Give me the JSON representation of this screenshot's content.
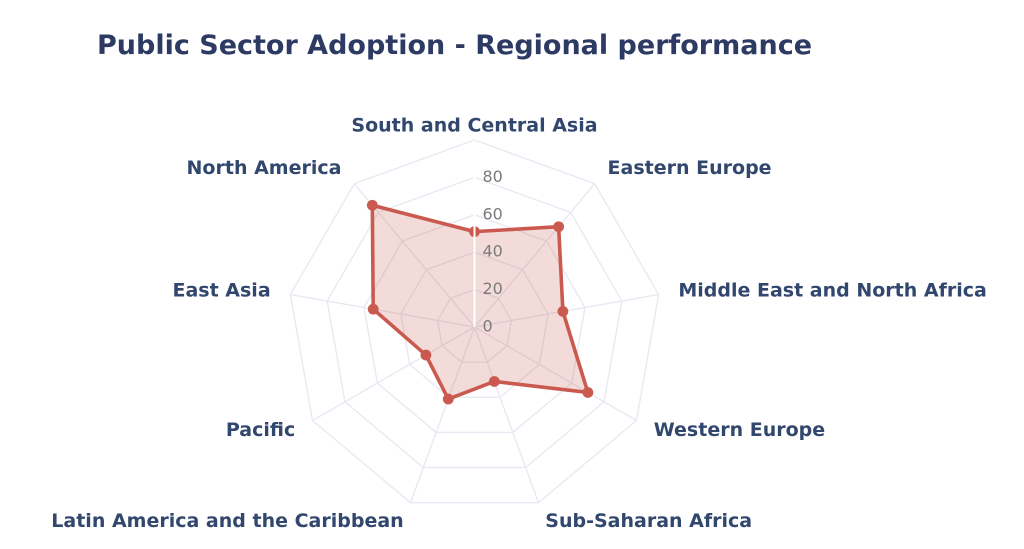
{
  "chart_data": {
    "type": "radar",
    "title": "Public Sector Adoption - Regional performance",
    "categories": [
      "South and Central Asia",
      "Eastern Europe",
      "Middle East and North Africa",
      "Western Europe",
      "Sub-Saharan Africa",
      "Latin America and the Caribbean",
      "Pacific",
      "East Asia",
      "North America"
    ],
    "values": [
      51,
      70,
      48,
      70,
      31,
      41,
      30,
      55,
      85
    ],
    "r_axis": {
      "min": 0,
      "max": 100,
      "tick_values": [
        0,
        20,
        40,
        60,
        80
      ],
      "tick_labels": [
        "0",
        "20",
        "40",
        "60",
        "80"
      ]
    },
    "grid": true,
    "legend": "none",
    "colors": {
      "series_stroke": "#ca5a50",
      "series_fill": "rgba(202,90,80,0.22)",
      "grid_line": "#e7eaf3",
      "radial_axis_line": "#ffffff",
      "tick_text": "#7b7b7b",
      "axis_label_text": "#32476e",
      "title_text": "#2d3a63",
      "background": "#ffffff"
    }
  }
}
